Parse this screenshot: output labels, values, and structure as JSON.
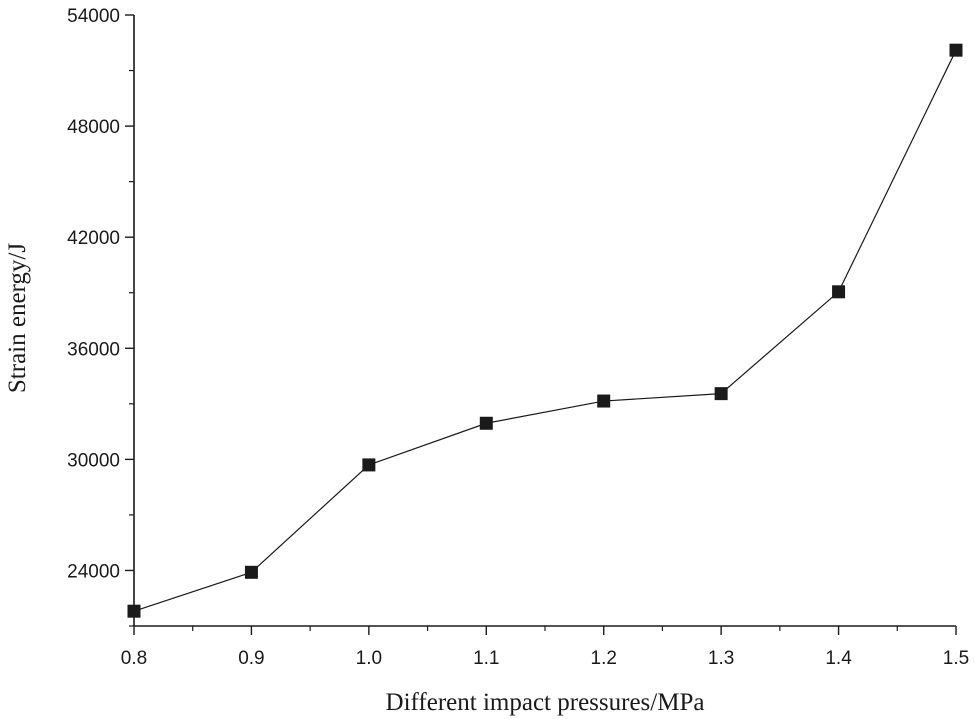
{
  "chart_data": {
    "type": "line",
    "title": "",
    "xlabel": "Different impact pressures/MPa",
    "ylabel": "Strain energy/J",
    "xlim": [
      0.8,
      1.5
    ],
    "ylim": [
      21000,
      54000
    ],
    "x_ticks": [
      "0.8",
      "0.9",
      "1.0",
      "1.1",
      "1.2",
      "1.3",
      "1.4",
      "1.5"
    ],
    "y_ticks": [
      "24000",
      "30000",
      "36000",
      "42000",
      "48000",
      "54000"
    ],
    "series": [
      {
        "name": "Strain energy",
        "marker": "square",
        "color": "#1a1a1a",
        "x": [
          0.8,
          0.9,
          1.0,
          1.1,
          1.2,
          1.3,
          1.4,
          1.5
        ],
        "values": [
          21800,
          23900,
          29700,
          31950,
          33150,
          33550,
          39050,
          52100
        ]
      }
    ]
  }
}
